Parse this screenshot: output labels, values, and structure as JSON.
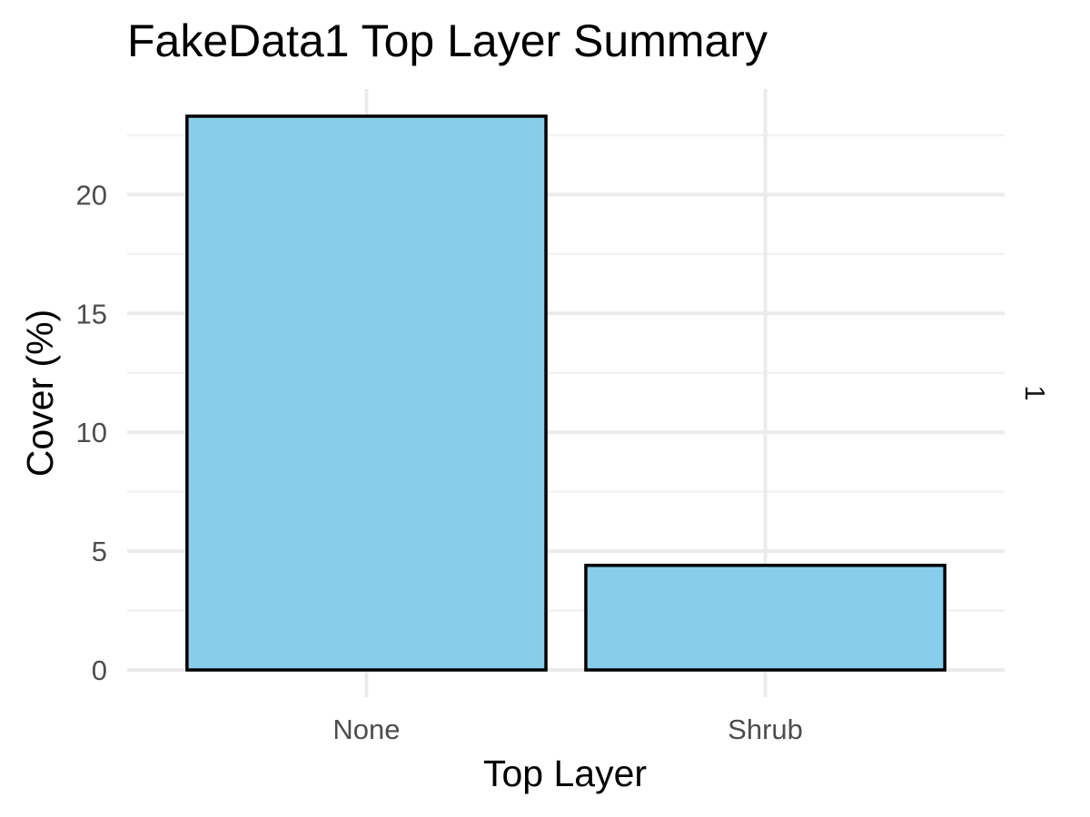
{
  "chart_data": {
    "type": "bar",
    "title": "FakeData1 Top Layer Summary",
    "xlabel": "Top Layer",
    "ylabel": "Cover (%)",
    "categories": [
      "None",
      "Shrub"
    ],
    "values": [
      23.3,
      4.4
    ],
    "ylim": [
      0,
      23.3
    ],
    "yticks": [
      0,
      5,
      10,
      15,
      20
    ],
    "facet_label": "1",
    "grid": true,
    "legend": "none",
    "bar_color": "#87ceeb",
    "bar_outline": "#000000"
  }
}
